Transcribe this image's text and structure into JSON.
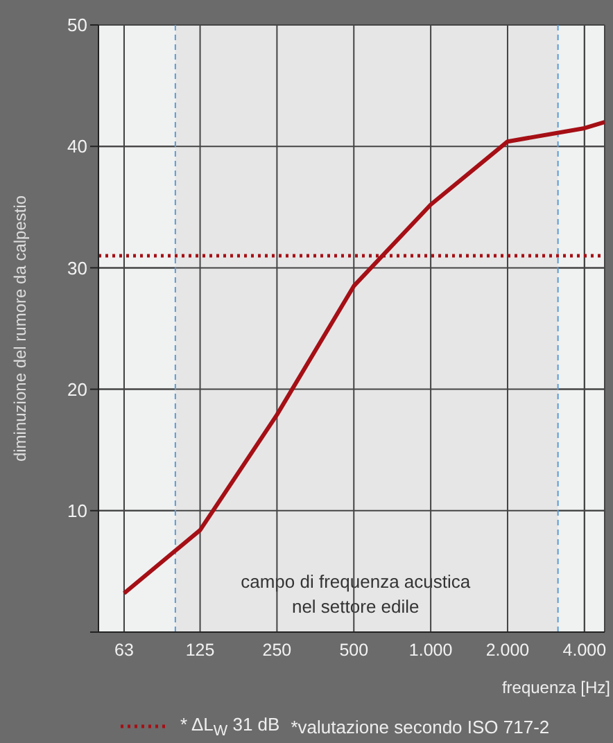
{
  "chart_data": {
    "type": "line",
    "ylabel": "diminuzione del rumore da calpestio",
    "xlabel": "frequenza [Hz]",
    "log": "x",
    "x": [
      63,
      125,
      250,
      500,
      1000,
      2000,
      4000,
      4800
    ],
    "series": [
      {
        "color": "#a50f15",
        "values": [
          3.2,
          8.4,
          17.9,
          28.5,
          35.2,
          40.4,
          41.5,
          42
        ]
      }
    ],
    "xlim": [
      50,
      4800
    ],
    "xticks": [
      63,
      125,
      250,
      500,
      {
        "value": 1000,
        "label": "1.000"
      },
      {
        "value": 2000,
        "label": "2.000"
      },
      {
        "value": 4000,
        "label": "4.000"
      }
    ],
    "ylim": [
      0,
      50
    ],
    "yticks": [
      {
        "value": 0,
        "label": null
      },
      10,
      20,
      30,
      40,
      50
    ],
    "grid": true,
    "marker": "none",
    "line_style": "solid",
    "bands": [
      {
        "axis": "x",
        "from": 100,
        "to": 3150,
        "label": "campo di frequenza acustica\nnel settore edile",
        "color": "#e6e6e6"
      }
    ],
    "ref_lines": [
      {
        "axis": "x",
        "value": 100,
        "color": "#5b9bd5",
        "line_style": "dashed"
      },
      {
        "axis": "x",
        "value": 3150,
        "color": "#5b9bd5",
        "line_style": "dashed"
      },
      {
        "axis": "y",
        "value": 31,
        "label": "* ΔL$_{W}$ 31 dB",
        "color": "#a50f15",
        "line_style": "dotted"
      }
    ],
    "annotations": [
      "*valutazione secondo ISO 717-2"
    ]
  }
}
